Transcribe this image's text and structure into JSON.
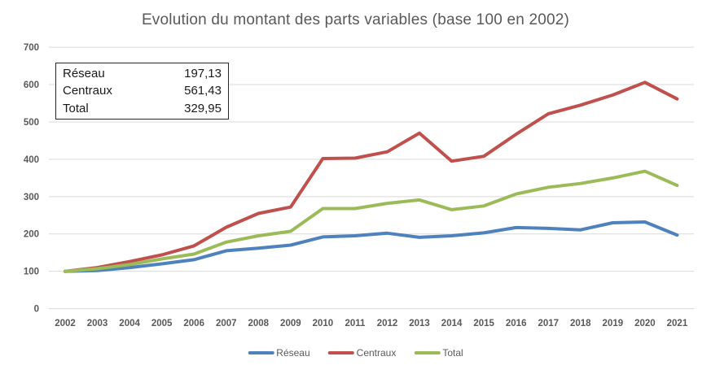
{
  "title": "Evolution du montant des parts variables (base 100 en 2002)",
  "info_box": {
    "rows": [
      {
        "label": "Réseau",
        "value": "197,13"
      },
      {
        "label": "Centraux",
        "value": "561,43"
      },
      {
        "label": "Total",
        "value": "329,95"
      }
    ]
  },
  "legend": [
    {
      "label": "Réseau",
      "color": "#4F81BD"
    },
    {
      "label": "Centraux",
      "color": "#C0504D"
    },
    {
      "label": "Total",
      "color": "#9BBB59"
    }
  ],
  "colors": {
    "reseau": "#4F81BD",
    "centraux": "#C0504D",
    "total": "#9BBB59",
    "grid": "#d9d9d9",
    "tick_text": "#595959"
  },
  "chart_data": {
    "type": "line",
    "title": "Evolution du montant des parts variables (base 100 en 2002)",
    "categories": [
      "2002",
      "2003",
      "2004",
      "2005",
      "2006",
      "2007",
      "2008",
      "2009",
      "2010",
      "2011",
      "2012",
      "2013",
      "2014",
      "2015",
      "2016",
      "2017",
      "2018",
      "2019",
      "2020",
      "2021"
    ],
    "series": [
      {
        "name": "Réseau",
        "color": "#4F81BD",
        "values": [
          100,
          102,
          110,
          120,
          131,
          155,
          162,
          170,
          192,
          195,
          202,
          191,
          195,
          203,
          217,
          215,
          211,
          230,
          232,
          197.13
        ]
      },
      {
        "name": "Centraux",
        "color": "#C0504D",
        "values": [
          100,
          110,
          126,
          144,
          168,
          218,
          255,
          272,
          402,
          403,
          420,
          470,
          395,
          408,
          467,
          522,
          545,
          572,
          606,
          561.43
        ]
      },
      {
        "name": "Total",
        "color": "#9BBB59",
        "values": [
          100,
          107,
          118,
          133,
          146,
          178,
          195,
          207,
          268,
          268,
          282,
          291,
          265,
          275,
          307,
          325,
          335,
          350,
          368,
          329.95
        ]
      }
    ],
    "xlabel": "",
    "ylabel": "",
    "ylim": [
      0,
      700
    ],
    "yticks": [
      0,
      100,
      200,
      300,
      400,
      500,
      600,
      700
    ],
    "grid": true,
    "legend_position": "bottom"
  }
}
